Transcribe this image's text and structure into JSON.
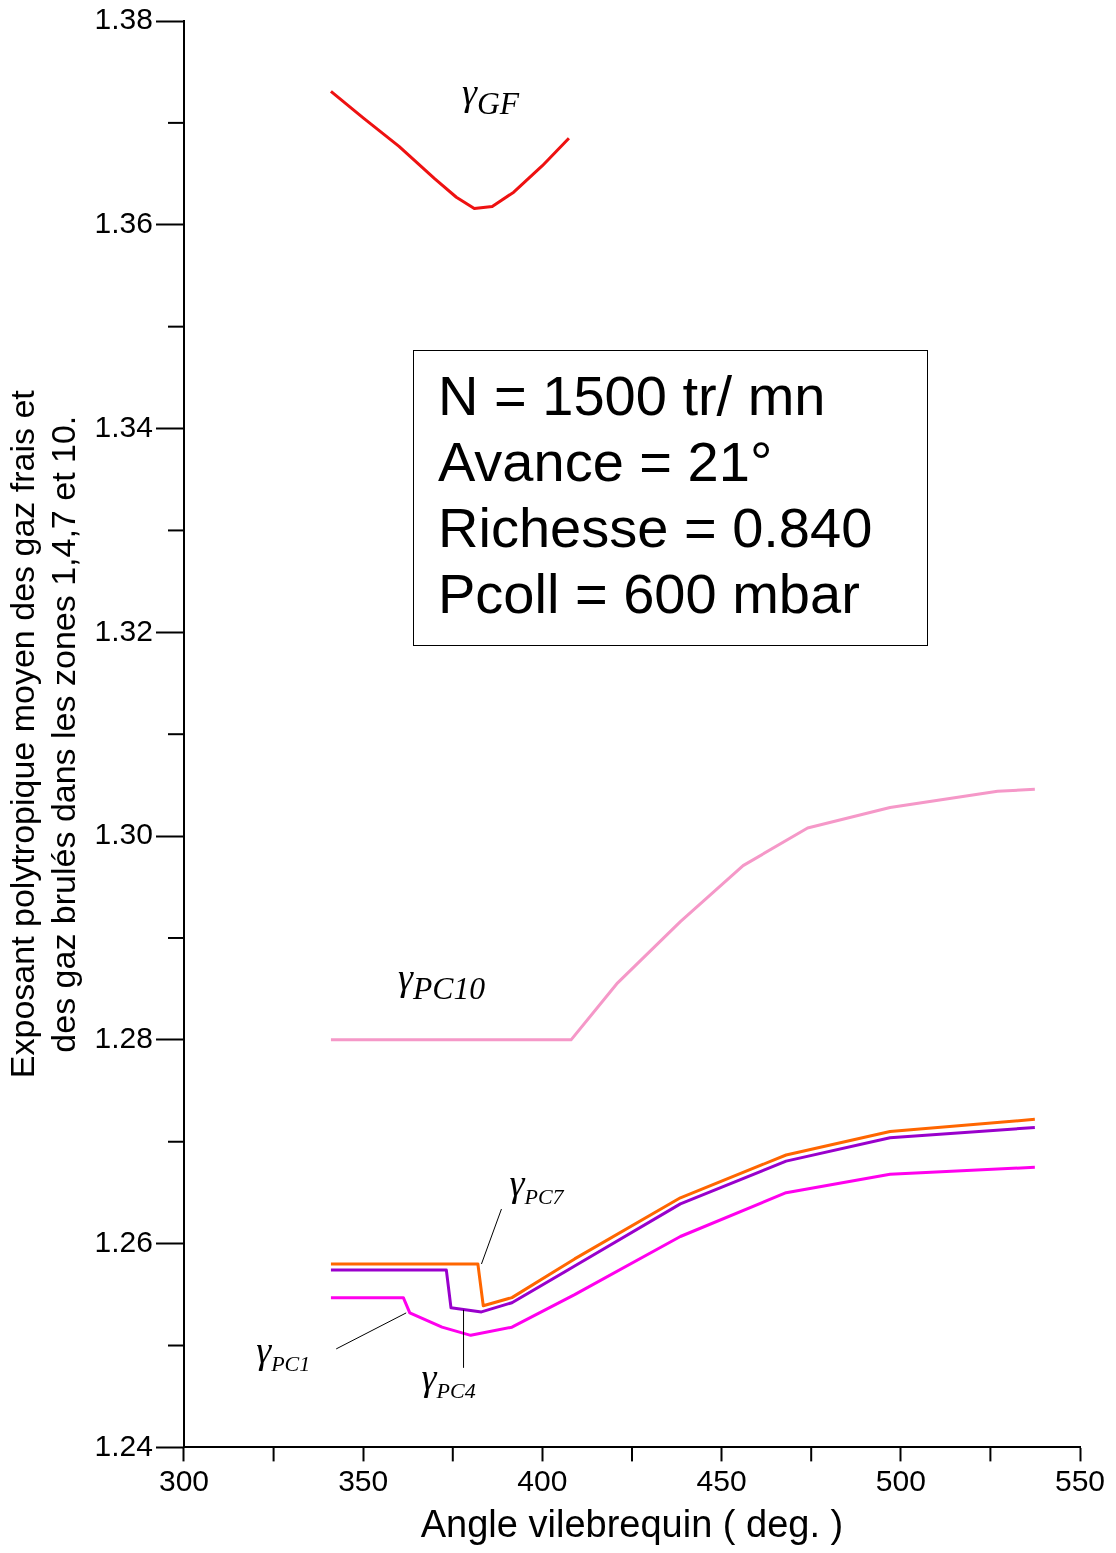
{
  "chart_data": {
    "type": "line",
    "xlabel": "Angle vilebrequin ( deg. )",
    "ylabel": "Exposant polytropique moyen des gaz frais et des gaz brulés dans les zones 1,4,7 et 10.",
    "xlim": [
      300,
      550
    ],
    "xticks": [
      300,
      {
        "value": 325,
        "label": null
      },
      350,
      {
        "value": 375,
        "label": null
      },
      400,
      {
        "value": 425,
        "label": null
      },
      450,
      {
        "value": 475,
        "label": null
      },
      500,
      {
        "value": 525,
        "label": null
      },
      550
    ],
    "ylim": [
      1.24,
      1.38
    ],
    "yticks": [
      1.24,
      {
        "value": 1.25,
        "label": null
      },
      1.26,
      {
        "value": 1.27,
        "label": null
      },
      1.28,
      {
        "value": 1.29,
        "label": null
      },
      {
        "value": 1.3,
        "label": "1.30"
      },
      {
        "value": 1.31,
        "label": null
      },
      1.32,
      {
        "value": 1.33,
        "label": null
      },
      1.34,
      {
        "value": 1.35,
        "label": null
      },
      1.36,
      {
        "value": 1.37,
        "label": null
      },
      1.38
    ],
    "grid": false,
    "legend": false,
    "marker": "none",
    "line_style": "solid",
    "series": [
      {
        "color": "#ee1111",
        "x": [
          341,
          350,
          360,
          370,
          376,
          381,
          386,
          392,
          400,
          407.4
        ],
        "values": [
          1.3731,
          1.3705,
          1.3677,
          1.3645,
          1.3627,
          1.3616,
          1.3618,
          1.3632,
          1.3658,
          1.3685
        ]
      },
      {
        "color": "#f598c8",
        "x": [
          341,
          408,
          421,
          438.5,
          456,
          474,
          497,
          527,
          537.4
        ],
        "values": [
          1.28,
          1.28,
          1.2856,
          1.2916,
          1.2971,
          1.3008,
          1.3028,
          1.3044,
          1.3046
        ]
      },
      {
        "color": "#ff6600",
        "x": [
          341,
          382,
          383.5,
          391.5,
          409,
          438.5,
          468,
          497,
          537.4
        ],
        "values": [
          1.258,
          1.258,
          1.2539,
          1.2547,
          1.2585,
          1.2645,
          1.2687,
          1.271,
          1.2722
        ]
      },
      {
        "color": "#9900cc",
        "x": [
          341,
          373.2,
          374.5,
          383,
          391.5,
          409,
          438.5,
          468,
          497,
          537.4
        ],
        "values": [
          1.2574,
          1.2574,
          1.2537,
          1.2533,
          1.2542,
          1.2578,
          1.2639,
          1.2681,
          1.2704,
          1.2714
        ]
      },
      {
        "color": "#ff00ee",
        "x": [
          341,
          361.2,
          363,
          372,
          380,
          391.5,
          409,
          438.5,
          468,
          497,
          537.4
        ],
        "values": [
          1.2547,
          1.2547,
          1.2532,
          1.2518,
          1.251,
          1.2518,
          1.255,
          1.2607,
          1.265,
          1.2668,
          1.2675
        ]
      }
    ],
    "annotations": [
      "γ$_{GF}$",
      "γ$_{PC10}$",
      {
        "text": "γ$_{PC7}$",
        "x": 383,
        "y": 1.258
      },
      {
        "text": "γ$_{PC1}$",
        "x": 362,
        "y": 1.2532
      },
      {
        "text": "γ$_{PC4}$",
        "x": 378,
        "y": 1.2535
      },
      "N = 1500 tr/ mn",
      "Avance = 21°",
      "Richesse = 0.840",
      "Pcoll = 600 mbar"
    ]
  }
}
